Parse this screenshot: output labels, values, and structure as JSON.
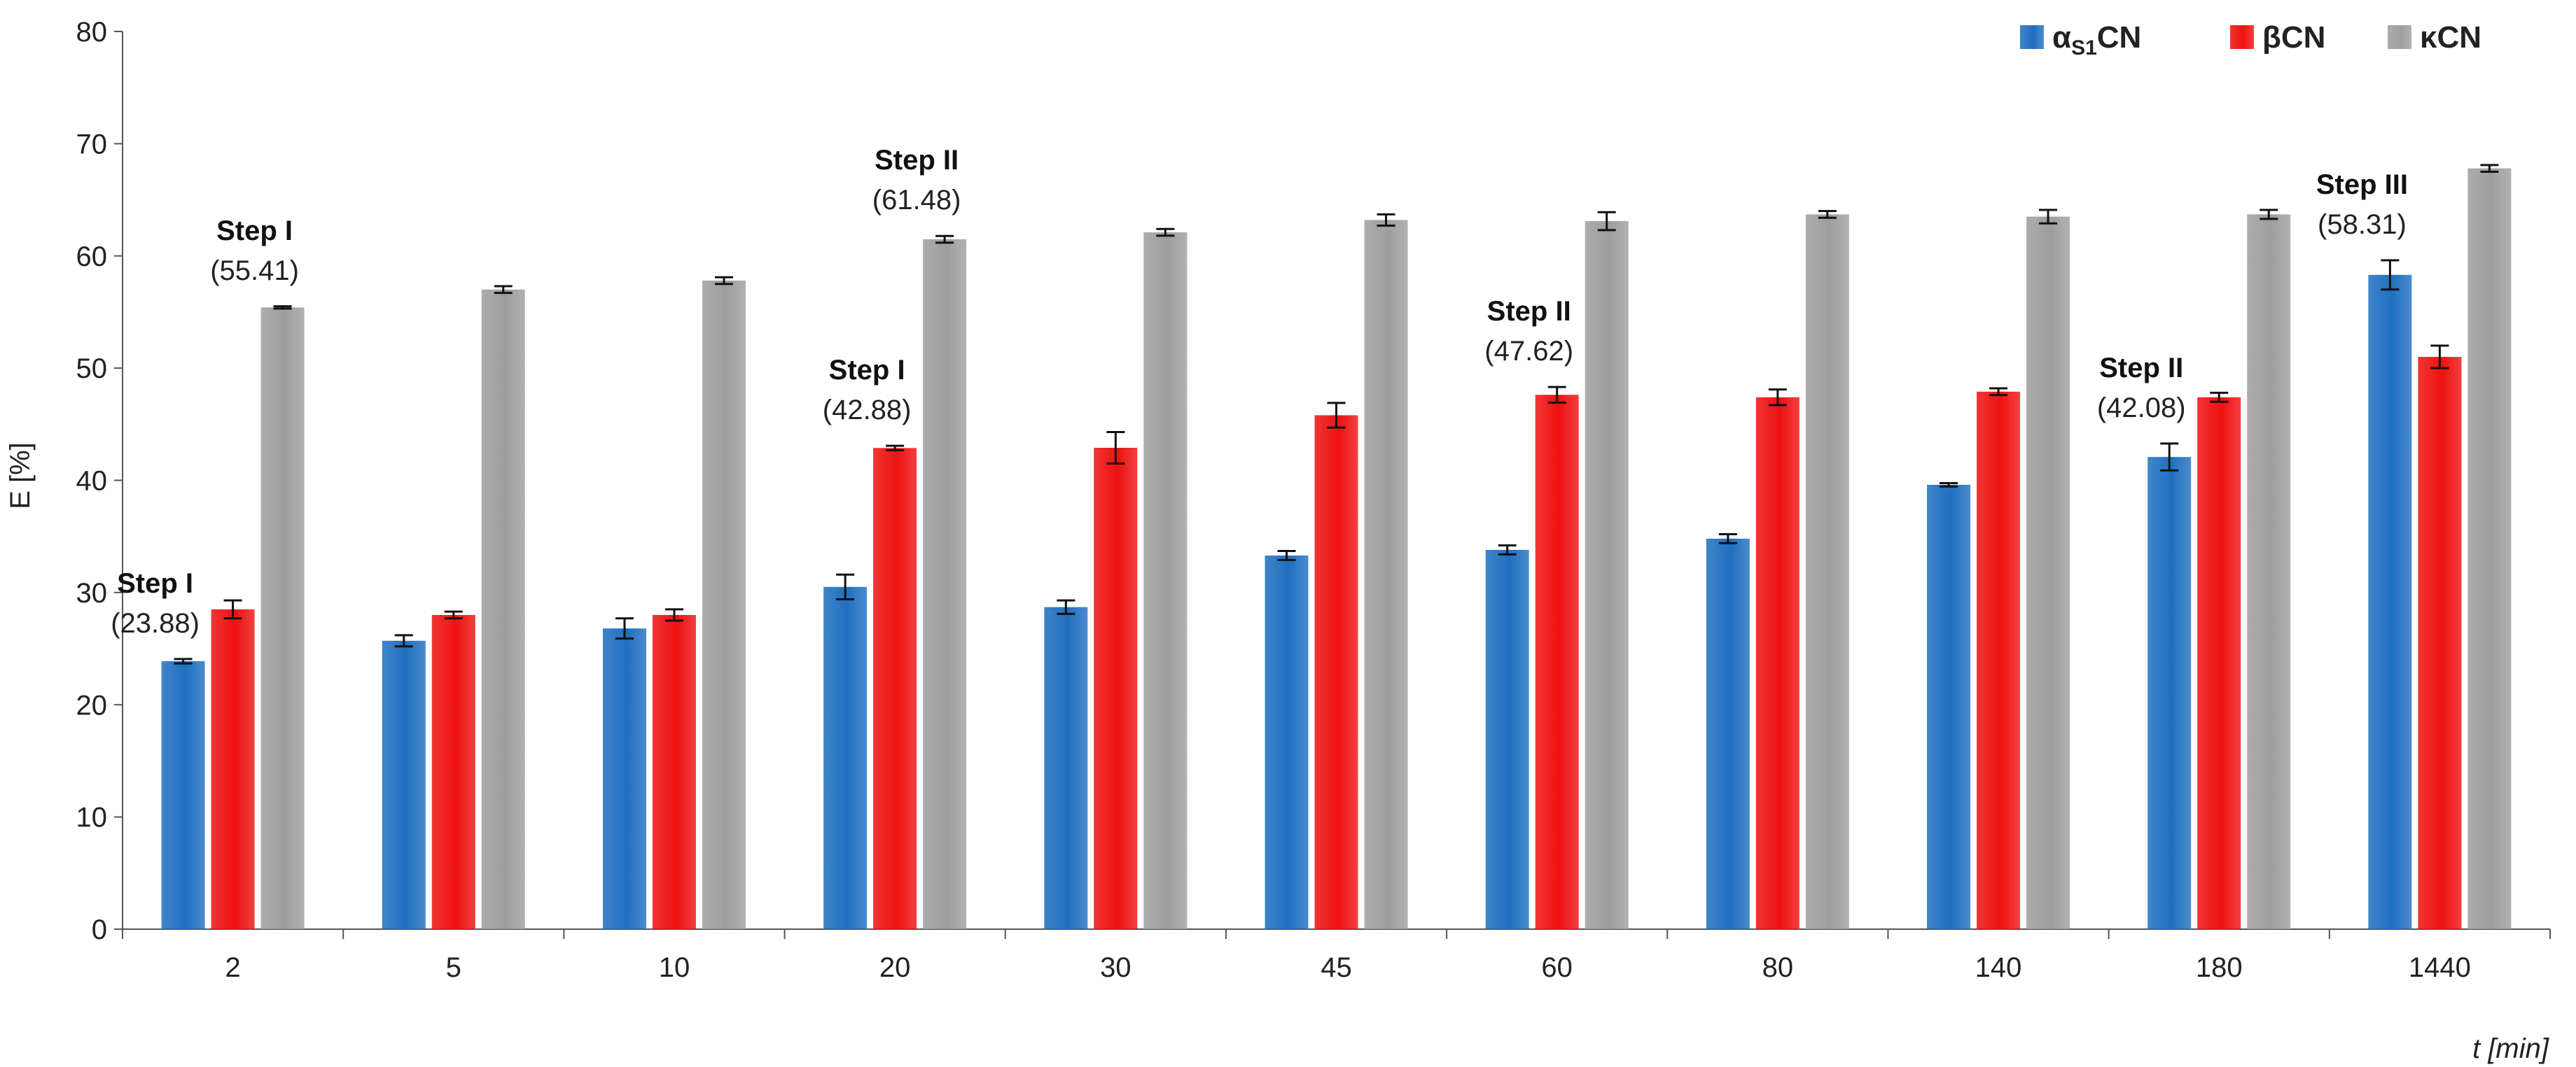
{
  "chart_data": {
    "type": "bar",
    "xlabel": "t [min]",
    "ylabel": "E [%]",
    "ylim": [
      0,
      80
    ],
    "yticks": [
      0,
      10,
      20,
      30,
      40,
      50,
      60,
      70,
      80
    ],
    "grid": false,
    "legend_position": "top-right",
    "categories": [
      "2",
      "5",
      "10",
      "20",
      "30",
      "45",
      "60",
      "80",
      "140",
      "180",
      "1440"
    ],
    "series": [
      {
        "name": "αS1CN",
        "name_main": "α",
        "name_sub": "S1",
        "name_tail": "CN",
        "color": "#1f6fc0",
        "values": [
          23.88,
          25.7,
          26.8,
          30.5,
          28.7,
          33.3,
          33.8,
          34.8,
          39.6,
          42.08,
          58.31
        ],
        "errors": [
          0.2,
          0.5,
          0.9,
          1.1,
          0.6,
          0.4,
          0.4,
          0.4,
          0.15,
          1.2,
          1.3
        ]
      },
      {
        "name": "βCN",
        "color": "#ee1111",
        "values": [
          28.5,
          28.0,
          28.0,
          42.88,
          42.9,
          45.8,
          47.62,
          47.4,
          47.9,
          47.4,
          51.0
        ],
        "errors": [
          0.8,
          0.3,
          0.5,
          0.2,
          1.4,
          1.1,
          0.7,
          0.7,
          0.3,
          0.4,
          1.0
        ]
      },
      {
        "name": "κCN",
        "color": "#9e9e9e",
        "values": [
          55.41,
          57.0,
          57.8,
          61.48,
          62.1,
          63.2,
          63.1,
          63.7,
          63.5,
          63.7,
          67.8
        ],
        "errors": [
          0.1,
          0.3,
          0.3,
          0.3,
          0.3,
          0.5,
          0.8,
          0.3,
          0.6,
          0.4,
          0.3
        ]
      }
    ],
    "annotations": [
      {
        "category": "2",
        "series": 0,
        "title": "Step I",
        "value": "(23.88)"
      },
      {
        "category": "2",
        "series": 2,
        "title": "Step I",
        "value": "(55.41)"
      },
      {
        "category": "20",
        "series": 1,
        "title": "Step I",
        "value": "(42.88)"
      },
      {
        "category": "20",
        "series": 2,
        "title": "Step II",
        "value": "(61.48)"
      },
      {
        "category": "60",
        "series": 1,
        "title": "Step II",
        "value": "(47.62)"
      },
      {
        "category": "180",
        "series": 0,
        "title": "Step II",
        "value": "(42.08)"
      },
      {
        "category": "1440",
        "series": 0,
        "title": "Step III",
        "value": "(58.31)"
      }
    ]
  }
}
